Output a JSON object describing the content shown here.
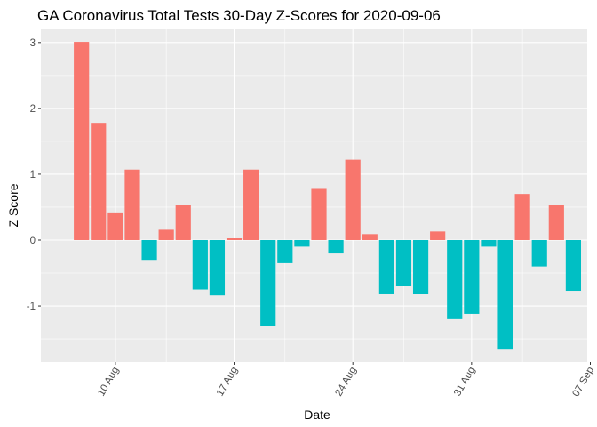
{
  "chart_data": {
    "type": "bar",
    "title": "GA Coronavirus Total Tests 30-Day Z-Scores for 2020-09-06",
    "xlabel": "Date",
    "ylabel": "Z Score",
    "x_axis_type": "date",
    "xlim": [
      "2020-08-06",
      "2020-09-07"
    ],
    "ylim": [
      -1.85,
      3.2
    ],
    "y_ticks": [
      -1,
      0,
      1,
      2,
      3
    ],
    "x_ticks": [
      {
        "date": "2020-08-10",
        "label": "10 Aug"
      },
      {
        "date": "2020-08-17",
        "label": "17 Aug"
      },
      {
        "date": "2020-08-24",
        "label": "24 Aug"
      },
      {
        "date": "2020-08-31",
        "label": "31 Aug"
      },
      {
        "date": "2020-09-07",
        "label": "07 Sep"
      }
    ],
    "x_minor_ticks": [
      "2020-08-13",
      "2020-08-20",
      "2020-08-27",
      "2020-09-03"
    ],
    "grid": true,
    "legend": "none",
    "colors": {
      "positive": "#F8766D",
      "negative": "#00BFC4",
      "panel": "#EBEBEB",
      "grid": "#FFFFFF"
    },
    "x": [
      "2020-08-08",
      "2020-08-09",
      "2020-08-10",
      "2020-08-11",
      "2020-08-12",
      "2020-08-13",
      "2020-08-14",
      "2020-08-15",
      "2020-08-16",
      "2020-08-17",
      "2020-08-18",
      "2020-08-19",
      "2020-08-20",
      "2020-08-21",
      "2020-08-22",
      "2020-08-23",
      "2020-08-24",
      "2020-08-25",
      "2020-08-26",
      "2020-08-27",
      "2020-08-28",
      "2020-08-29",
      "2020-08-30",
      "2020-08-31",
      "2020-09-01",
      "2020-09-02",
      "2020-09-03",
      "2020-09-04",
      "2020-09-05",
      "2020-09-06"
    ],
    "values": [
      3.01,
      1.78,
      0.42,
      1.07,
      -0.3,
      0.17,
      0.53,
      -0.75,
      -0.84,
      0.03,
      1.07,
      -1.3,
      -0.35,
      -0.1,
      0.79,
      -0.19,
      1.22,
      0.09,
      -0.81,
      -0.69,
      -0.82,
      0.13,
      -1.2,
      -1.12,
      -0.1,
      -1.65,
      0.7,
      -0.4,
      0.53,
      -0.77
    ]
  }
}
